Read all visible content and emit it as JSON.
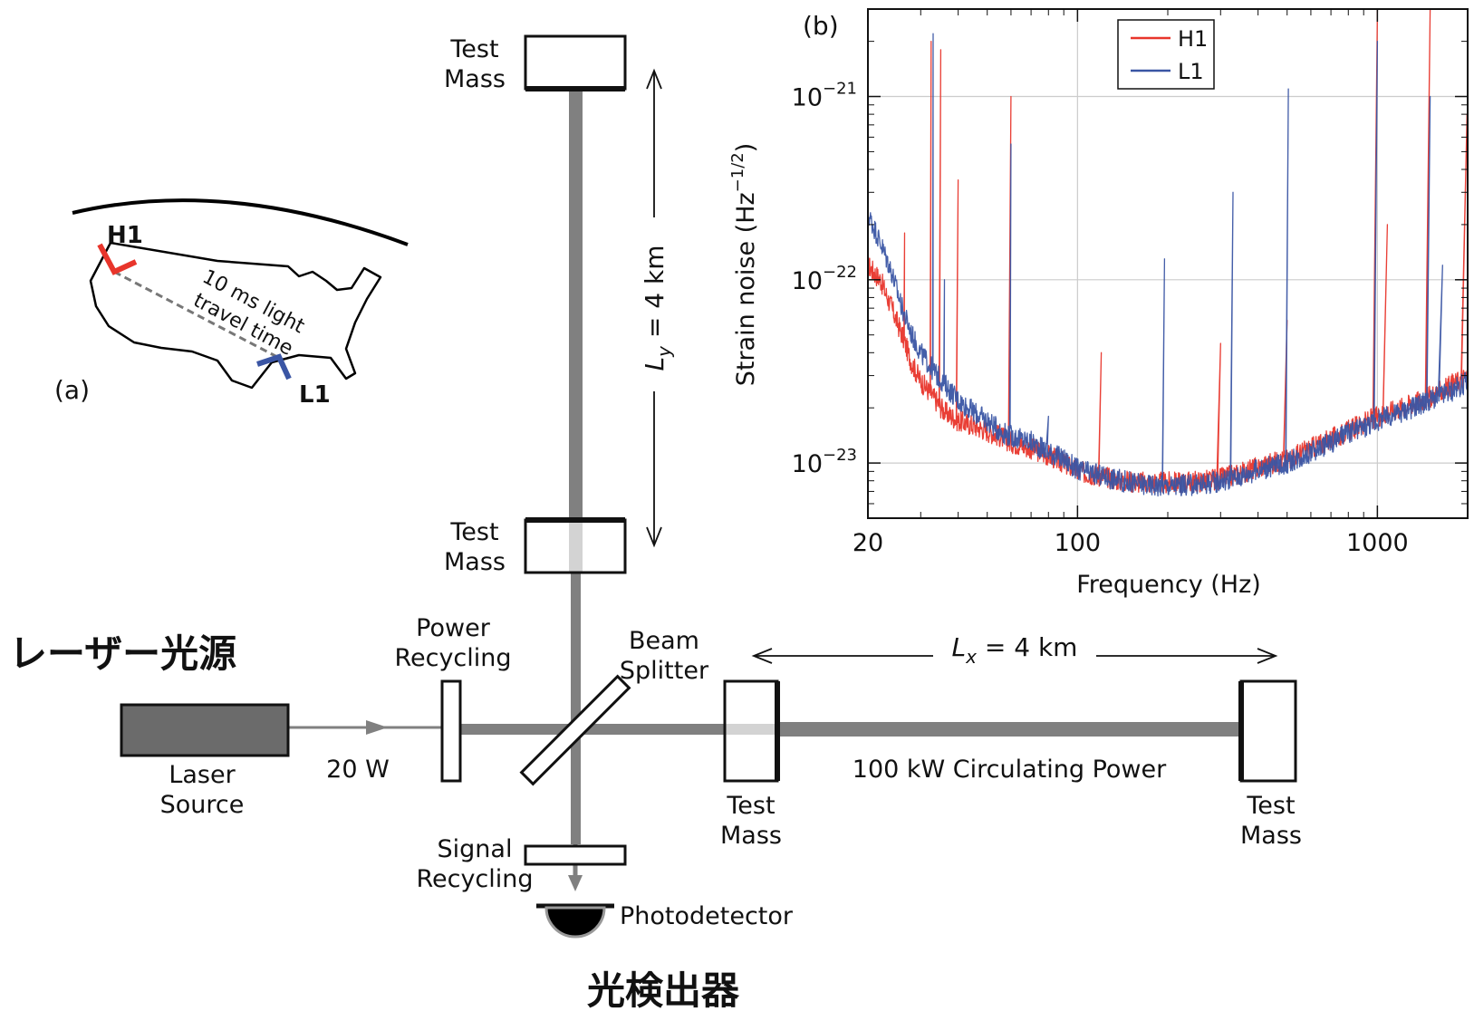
{
  "panel_a": {
    "panel_label": "(a)",
    "site_h1": "H1",
    "site_l1": "L1",
    "travel_line1": "10 ms light",
    "travel_line2": "travel time",
    "colors": {
      "h1": "#e8352b",
      "l1": "#3a55a4",
      "map": "#000000"
    }
  },
  "interferometer": {
    "test_mass_top": [
      "Test",
      "Mass"
    ],
    "test_mass_inner_y": [
      "Test",
      "Mass"
    ],
    "test_mass_inner_x": [
      "Test",
      "Mass"
    ],
    "test_mass_end_x": [
      "Test",
      "Mass"
    ],
    "ly_var": "L",
    "ly_sub": "y",
    "ly_rest": " = 4 km",
    "lx_var": "L",
    "lx_sub": "x",
    "lx_rest": " = 4 km",
    "power_recycling": [
      "Power",
      "Recycling"
    ],
    "beam_splitter": [
      "Beam",
      "Splitter"
    ],
    "signal_recycling": [
      "Signal",
      "Recycling"
    ],
    "laser_source": [
      "Laser",
      "Source"
    ],
    "input_power": "20 W",
    "circulating_power": "100 kW Circulating Power",
    "photodetector": "Photodetector",
    "jp_laser_source": "レーザー光源",
    "jp_photodetector": "光検出器"
  },
  "chart_data": {
    "type": "line",
    "panel_label": "(b)",
    "xlabel": "Frequency (Hz)",
    "ylabel_main": "Strain noise (Hz",
    "ylabel_sup": "−1/2",
    "ylabel_end": ")",
    "x_scale": "log",
    "y_scale": "log",
    "xlim": [
      20,
      2000
    ],
    "ylim": [
      5e-24,
      3e-21
    ],
    "x_ticks": [
      {
        "value": 20,
        "label": "20"
      },
      {
        "value": 100,
        "label": "100"
      },
      {
        "value": 1000,
        "label": "1000"
      }
    ],
    "y_ticks": [
      {
        "value": 1e-23,
        "label_base": "10",
        "label_exp": "−23"
      },
      {
        "value": 1e-22,
        "label_base": "10",
        "label_exp": "−22"
      },
      {
        "value": 1e-21,
        "label_base": "10",
        "label_exp": "−21"
      }
    ],
    "grid": true,
    "legend_position": "top-center",
    "series": [
      {
        "name": "H1",
        "color": "#e8352b",
        "x": [
          20,
          22,
          24,
          26,
          28,
          30,
          33,
          36,
          40,
          45,
          50,
          55,
          60,
          70,
          80,
          90,
          100,
          120,
          140,
          170,
          200,
          250,
          300,
          350,
          400,
          500,
          600,
          700,
          800,
          1000,
          1200,
          1500,
          1800,
          2000
        ],
        "y": [
          1.2e-22,
          1e-22,
          7e-23,
          5e-23,
          3.5e-23,
          2.8e-23,
          2.3e-23,
          1.9e-23,
          1.7e-23,
          1.6e-23,
          1.5e-23,
          1.4e-23,
          1.3e-23,
          1.2e-23,
          1.1e-23,
          1e-23,
          9e-24,
          8.5e-24,
          8e-24,
          7.8e-24,
          7.8e-24,
          7.9e-24,
          8.2e-24,
          8.8e-24,
          9.5e-24,
          1.05e-23,
          1.2e-23,
          1.35e-23,
          1.5e-23,
          1.8e-23,
          2e-23,
          2.3e-23,
          2.7e-23,
          3e-23
        ],
        "spikes": [
          {
            "x": 24,
            "y": 8e-23
          },
          {
            "x": 26.5,
            "y": 1.8e-22
          },
          {
            "x": 32.5,
            "y": 2e-21
          },
          {
            "x": 35,
            "y": 1.8e-21
          },
          {
            "x": 40,
            "y": 3.5e-22
          },
          {
            "x": 60,
            "y": 1e-21
          },
          {
            "x": 120,
            "y": 4e-23
          },
          {
            "x": 300,
            "y": 4.5e-23
          },
          {
            "x": 500,
            "y": 6e-23
          },
          {
            "x": 1000,
            "y": 3e-21
          },
          {
            "x": 1080,
            "y": 2e-22
          },
          {
            "x": 1500,
            "y": 3e-21
          },
          {
            "x": 1990,
            "y": 8e-22
          }
        ]
      },
      {
        "name": "L1",
        "color": "#3a55a4",
        "x": [
          20,
          22,
          24,
          26,
          28,
          30,
          33,
          36,
          40,
          45,
          50,
          55,
          60,
          70,
          80,
          90,
          100,
          120,
          140,
          170,
          200,
          250,
          300,
          350,
          400,
          500,
          600,
          700,
          800,
          1000,
          1200,
          1500,
          1800,
          2000
        ],
        "y": [
          2.3e-22,
          1.6e-22,
          1.1e-22,
          7e-23,
          5e-23,
          4e-23,
          3.2e-23,
          2.7e-23,
          2.2e-23,
          1.9e-23,
          1.7e-23,
          1.5e-23,
          1.4e-23,
          1.3e-23,
          1.15e-23,
          1.05e-23,
          9.2e-24,
          8.5e-24,
          8e-24,
          7.6e-24,
          7.5e-24,
          7.6e-24,
          8e-24,
          8.5e-24,
          9.2e-24,
          1e-23,
          1.15e-23,
          1.3e-23,
          1.45e-23,
          1.7e-23,
          1.9e-23,
          2.2e-23,
          2.5e-23,
          2.8e-23
        ],
        "spikes": [
          {
            "x": 33,
            "y": 2.2e-21
          },
          {
            "x": 36,
            "y": 1e-22
          },
          {
            "x": 60,
            "y": 5.5e-22
          },
          {
            "x": 80,
            "y": 1.8e-23
          },
          {
            "x": 195,
            "y": 1.3e-22
          },
          {
            "x": 330,
            "y": 3e-22
          },
          {
            "x": 505,
            "y": 1.1e-21
          },
          {
            "x": 1000,
            "y": 2e-21
          },
          {
            "x": 1500,
            "y": 1e-21
          },
          {
            "x": 1650,
            "y": 1.2e-22
          }
        ]
      }
    ]
  }
}
